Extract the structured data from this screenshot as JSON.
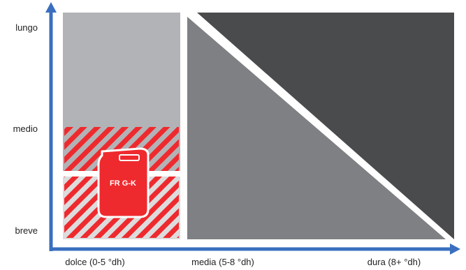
{
  "y_axis": {
    "ticks": [
      "lungo",
      "medio",
      "breve"
    ]
  },
  "x_axis": {
    "ticks": [
      "dolce (0-5 °dh)",
      "media (5-8 °dh)",
      "dura (8+ °dh)"
    ]
  },
  "product": {
    "label": "FR G-K",
    "icon": "canister-icon"
  },
  "colors": {
    "axis": "#3a6fbf",
    "zone_light": "#b2b3b6",
    "zone_lightest": "#dcdcdd",
    "zone_mid": "#7f8083",
    "zone_dark": "#4a4b4d",
    "hatch": "#ee2a2e",
    "product": "#ee2a2e"
  }
}
